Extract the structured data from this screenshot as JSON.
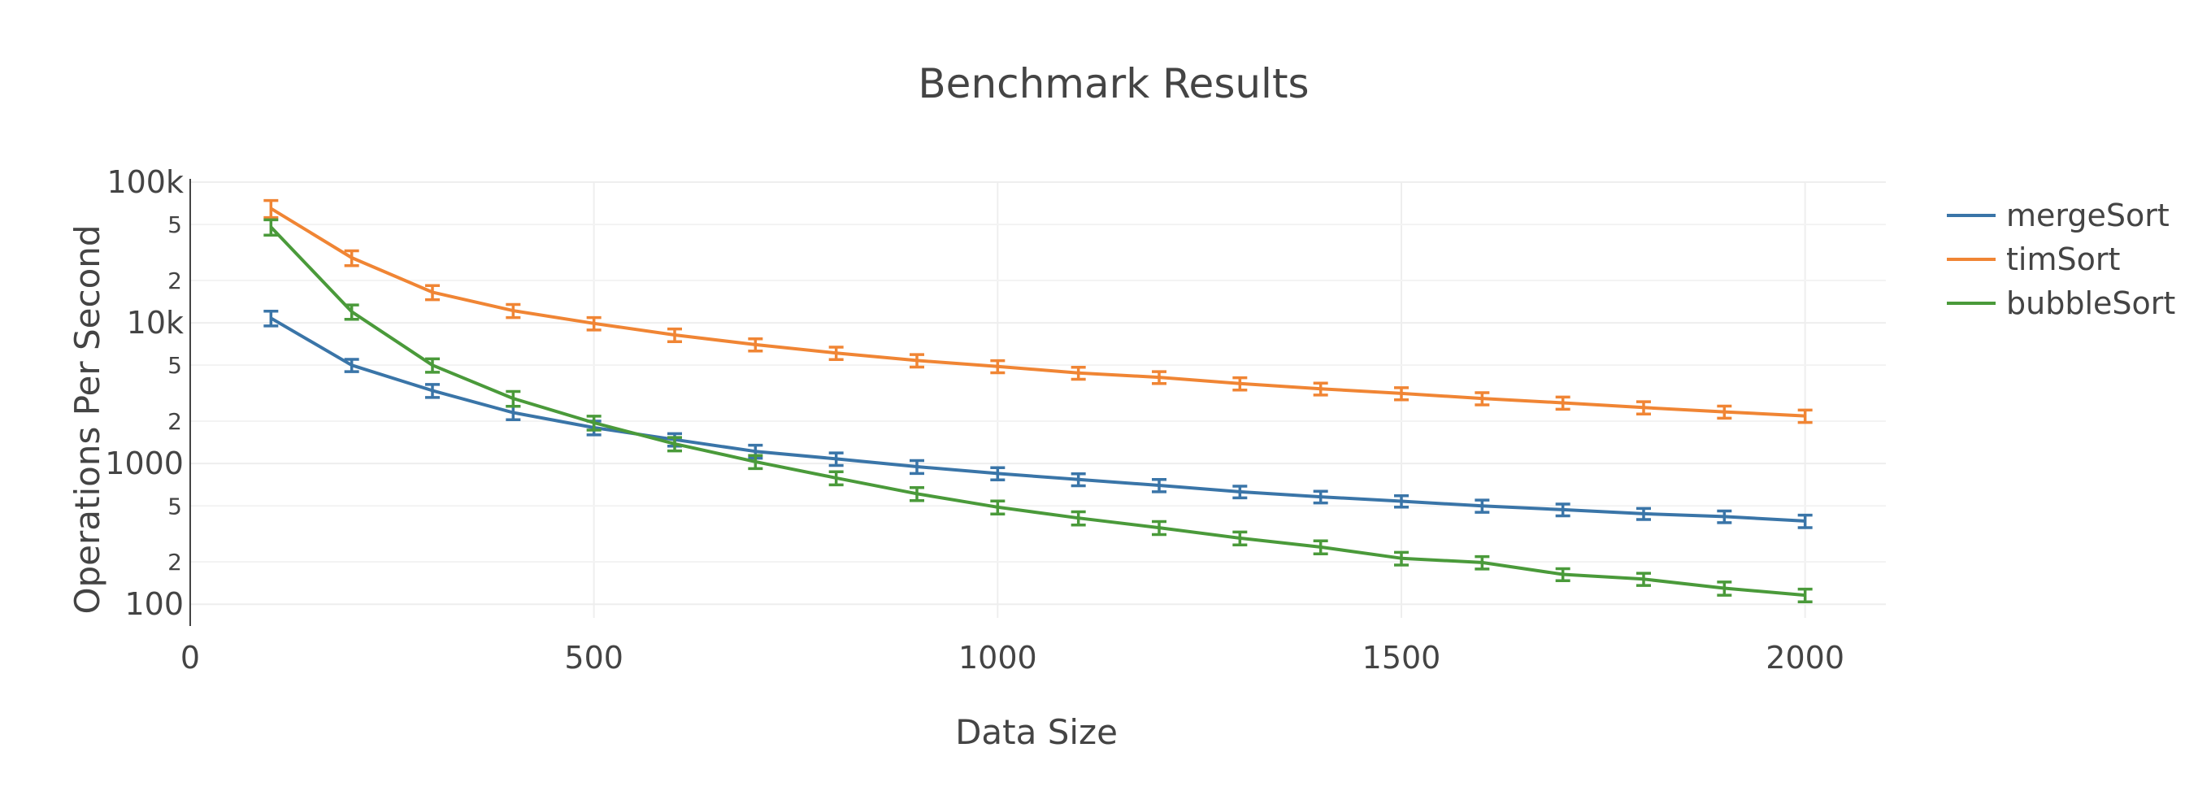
{
  "chart_data": {
    "type": "line",
    "title": "Benchmark Results",
    "xlabel": "Data Size",
    "ylabel": "Operations Per Second",
    "y_scale": "log",
    "xlim": [
      0,
      2100
    ],
    "ylim": [
      80,
      100000
    ],
    "x_ticks": [
      0,
      500,
      1000,
      1500,
      2000
    ],
    "x_tick_labels": [
      "0",
      "500",
      "1000",
      "1500",
      "2000"
    ],
    "y_major_ticks": [
      100,
      1000,
      10000,
      100000
    ],
    "y_major_tick_labels": [
      "100",
      "1000",
      "10k",
      "100k"
    ],
    "y_minor_ticks": [
      200,
      500,
      2000,
      5000,
      20000,
      50000
    ],
    "y_minor_tick_labels": [
      "2",
      "5",
      "2",
      "5",
      "2",
      "5"
    ],
    "grid": true,
    "legend_position": "top-right",
    "x": [
      100,
      200,
      300,
      400,
      500,
      600,
      700,
      800,
      900,
      1000,
      1100,
      1200,
      1300,
      1400,
      1500,
      1600,
      1700,
      1800,
      1900,
      2000
    ],
    "series": [
      {
        "name": "mergeSort",
        "color": "#3a75a8",
        "values": [
          10800,
          5000,
          3300,
          2300,
          1800,
          1480,
          1220,
          1080,
          950,
          850,
          770,
          700,
          630,
          580,
          540,
          500,
          470,
          440,
          420,
          390
        ],
        "errors": [
          1300,
          500,
          350,
          250,
          200,
          150,
          130,
          110,
          100,
          85,
          75,
          70,
          60,
          55,
          50,
          50,
          45,
          40,
          40,
          40
        ]
      },
      {
        "name": "timSort",
        "color": "#f08534",
        "values": [
          65000,
          29000,
          16500,
          12200,
          9900,
          8200,
          7000,
          6100,
          5400,
          4900,
          4400,
          4100,
          3700,
          3400,
          3150,
          2900,
          2700,
          2500,
          2330,
          2180
        ],
        "errors": [
          9000,
          3500,
          1900,
          1300,
          1000,
          850,
          700,
          620,
          550,
          480,
          430,
          400,
          370,
          330,
          310,
          290,
          270,
          250,
          230,
          220
        ]
      },
      {
        "name": "bubbleSort",
        "color": "#4a9a3a",
        "values": [
          48000,
          12000,
          5000,
          2900,
          1950,
          1380,
          1030,
          790,
          610,
          490,
          410,
          350,
          295,
          255,
          212,
          198,
          163,
          151,
          130,
          116
        ],
        "errors": [
          6000,
          1400,
          550,
          350,
          220,
          150,
          110,
          85,
          65,
          52,
          44,
          37,
          31,
          27,
          22,
          20,
          16,
          15,
          14,
          12
        ]
      }
    ]
  }
}
